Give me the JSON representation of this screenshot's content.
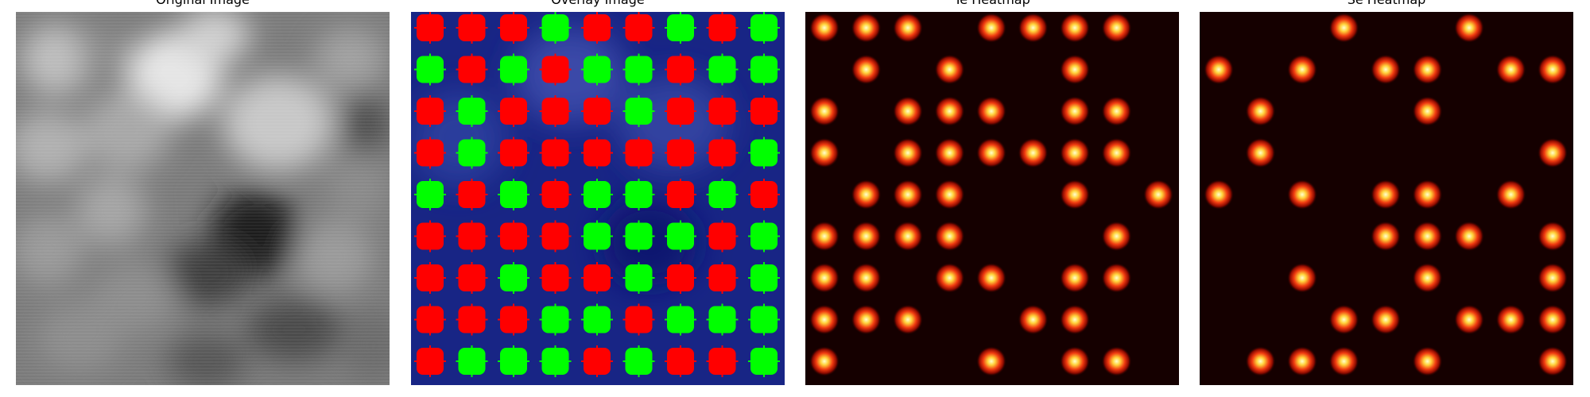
{
  "panels": [
    {
      "title": "Original Image"
    },
    {
      "title": "Overlay Image"
    },
    {
      "title": "Te Heatmap"
    },
    {
      "title": "Se Heatmap"
    }
  ],
  "colors": {
    "marker_red": "#ff0000",
    "marker_green": "#00ff00",
    "overlay_background": "#1b2a8c",
    "heatmap_background": "#150000",
    "heatmap_hot": "#ffffcc"
  },
  "overlay_grid": {
    "rows": [
      [
        "red",
        "red",
        "red",
        "green",
        "red",
        "red",
        "green",
        "red",
        "green"
      ],
      [
        "green",
        "red",
        "green",
        "red",
        "green",
        "green",
        "red",
        "green",
        "green"
      ],
      [
        "red",
        "green",
        "red",
        "red",
        "red",
        "green",
        "red",
        "red",
        "red"
      ],
      [
        "red",
        "green",
        "red",
        "red",
        "red",
        "red",
        "red",
        "red",
        "green"
      ],
      [
        "green",
        "red",
        "green",
        "red",
        "green",
        "green",
        "red",
        "green",
        "red"
      ],
      [
        "red",
        "red",
        "red",
        "red",
        "green",
        "green",
        "green",
        "red",
        "green"
      ],
      [
        "red",
        "red",
        "green",
        "red",
        "red",
        "green",
        "red",
        "red",
        "green"
      ],
      [
        "red",
        "red",
        "red",
        "green",
        "green",
        "red",
        "green",
        "green",
        "green"
      ],
      [
        "red",
        "green",
        "green",
        "green",
        "red",
        "green",
        "red",
        "red",
        "green"
      ]
    ]
  },
  "te_heatmap_spots": [
    [
      0,
      0
    ],
    [
      0,
      1
    ],
    [
      0,
      2
    ],
    [
      0,
      4
    ],
    [
      0,
      5
    ],
    [
      0,
      6
    ],
    [
      0,
      7
    ],
    [
      1,
      1
    ],
    [
      1,
      3
    ],
    [
      1,
      6
    ],
    [
      2,
      0
    ],
    [
      2,
      2
    ],
    [
      2,
      3
    ],
    [
      2,
      4
    ],
    [
      2,
      6
    ],
    [
      2,
      7
    ],
    [
      3,
      0
    ],
    [
      3,
      2
    ],
    [
      3,
      3
    ],
    [
      3,
      4
    ],
    [
      3,
      5
    ],
    [
      3,
      6
    ],
    [
      3,
      7
    ],
    [
      4,
      1
    ],
    [
      4,
      2
    ],
    [
      4,
      3
    ],
    [
      4,
      6
    ],
    [
      4,
      8
    ],
    [
      5,
      0
    ],
    [
      5,
      1
    ],
    [
      5,
      2
    ],
    [
      5,
      3
    ],
    [
      5,
      7
    ],
    [
      6,
      0
    ],
    [
      6,
      1
    ],
    [
      6,
      3
    ],
    [
      6,
      4
    ],
    [
      6,
      6
    ],
    [
      6,
      7
    ],
    [
      7,
      0
    ],
    [
      7,
      1
    ],
    [
      7,
      2
    ],
    [
      7,
      5
    ],
    [
      7,
      6
    ],
    [
      8,
      0
    ],
    [
      8,
      4
    ],
    [
      8,
      6
    ],
    [
      8,
      7
    ]
  ],
  "se_heatmap_spots": [
    [
      0,
      3
    ],
    [
      0,
      6
    ],
    [
      1,
      0
    ],
    [
      1,
      2
    ],
    [
      1,
      4
    ],
    [
      1,
      5
    ],
    [
      1,
      7
    ],
    [
      1,
      8
    ],
    [
      2,
      1
    ],
    [
      2,
      5
    ],
    [
      3,
      1
    ],
    [
      3,
      8
    ],
    [
      4,
      0
    ],
    [
      4,
      2
    ],
    [
      4,
      4
    ],
    [
      4,
      5
    ],
    [
      4,
      7
    ],
    [
      5,
      4
    ],
    [
      5,
      5
    ],
    [
      5,
      6
    ],
    [
      5,
      8
    ],
    [
      6,
      2
    ],
    [
      6,
      5
    ],
    [
      6,
      8
    ],
    [
      7,
      3
    ],
    [
      7,
      4
    ],
    [
      7,
      6
    ],
    [
      7,
      7
    ],
    [
      7,
      8
    ],
    [
      8,
      1
    ],
    [
      8,
      2
    ],
    [
      8,
      3
    ],
    [
      8,
      5
    ],
    [
      8,
      8
    ]
  ]
}
